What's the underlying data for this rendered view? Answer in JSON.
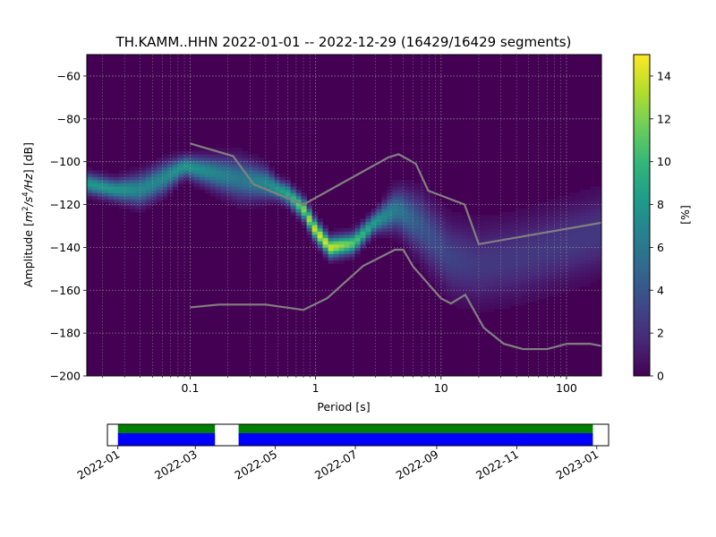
{
  "chart_data": [
    {
      "type": "heatmap",
      "title": "TH.KAMM..HHN   2022-01-01 -- 2022-12-29  (16429/16429 segments)",
      "xlabel": "Period [s]",
      "ylabel_main": "Amplitude [",
      "ylabel_m": "m",
      "ylabel_exp2": "2",
      "ylabel_slash_s": "/s",
      "ylabel_exp4": "4",
      "ylabel_hz": "/Hz",
      "ylabel_end": "] [dB]",
      "x_scale": "log",
      "xlim": [
        0.015,
        190
      ],
      "ylim": [
        -200,
        -50
      ],
      "x_ticks": [
        {
          "value": 0.1,
          "label": "0.1"
        },
        {
          "value": 1,
          "label": "1"
        },
        {
          "value": 10,
          "label": "10"
        },
        {
          "value": 100,
          "label": "100"
        }
      ],
      "y_ticks": [
        {
          "value": -60,
          "label": "−60"
        },
        {
          "value": -80,
          "label": "−80"
        },
        {
          "value": -100,
          "label": "−100"
        },
        {
          "value": -120,
          "label": "−120"
        },
        {
          "value": -140,
          "label": "−140"
        },
        {
          "value": -160,
          "label": "−160"
        },
        {
          "value": -180,
          "label": "−180"
        },
        {
          "value": -200,
          "label": "−200"
        }
      ],
      "grid": true,
      "colormap": "viridis",
      "colorbar": {
        "label": "[%]",
        "range": [
          0,
          15
        ],
        "ticks": [
          {
            "value": 0,
            "label": "0"
          },
          {
            "value": 2,
            "label": "2"
          },
          {
            "value": 4,
            "label": "4"
          },
          {
            "value": 6,
            "label": "6"
          },
          {
            "value": 8,
            "label": "8"
          },
          {
            "value": 10,
            "label": "10"
          },
          {
            "value": 12,
            "label": "12"
          },
          {
            "value": 14,
            "label": "14"
          }
        ]
      },
      "density_ridge": [
        {
          "period": 0.015,
          "db": -110,
          "peak_pct": 8
        },
        {
          "period": 0.025,
          "db": -113,
          "peak_pct": 8
        },
        {
          "period": 0.04,
          "db": -113,
          "peak_pct": 7
        },
        {
          "period": 0.06,
          "db": -108,
          "peak_pct": 7
        },
        {
          "period": 0.09,
          "db": -102,
          "peak_pct": 8
        },
        {
          "period": 0.15,
          "db": -105,
          "peak_pct": 7
        },
        {
          "period": 0.25,
          "db": -108,
          "peak_pct": 6
        },
        {
          "period": 0.4,
          "db": -110,
          "peak_pct": 7
        },
        {
          "period": 0.6,
          "db": -115,
          "peak_pct": 9
        },
        {
          "period": 0.8,
          "db": -122,
          "peak_pct": 12
        },
        {
          "period": 1.0,
          "db": -132,
          "peak_pct": 14
        },
        {
          "period": 1.3,
          "db": -140,
          "peak_pct": 14
        },
        {
          "period": 2.0,
          "db": -138,
          "peak_pct": 11
        },
        {
          "period": 3.0,
          "db": -128,
          "peak_pct": 8
        },
        {
          "period": 4.5,
          "db": -122,
          "peak_pct": 6
        },
        {
          "period": 7,
          "db": -130,
          "peak_pct": 4
        },
        {
          "period": 12,
          "db": -145,
          "peak_pct": 3
        },
        {
          "period": 20,
          "db": -148,
          "peak_pct": 2.5
        },
        {
          "period": 40,
          "db": -145,
          "peak_pct": 2.5
        },
        {
          "period": 80,
          "db": -140,
          "peak_pct": 2.5
        },
        {
          "period": 190,
          "db": -133,
          "peak_pct": 2.5
        }
      ],
      "noise_models": [
        {
          "name": "",
          "points": [
            [
              0.1,
              -91.5
            ],
            [
              0.22,
              -97.4
            ],
            [
              0.32,
              -110.5
            ],
            [
              0.8,
              -120
            ],
            [
              3.8,
              -98
            ],
            [
              4.6,
              -96.5
            ],
            [
              6.3,
              -101
            ],
            [
              7.9,
              -113.5
            ],
            [
              15.4,
              -120
            ],
            [
              20,
              -138.5
            ],
            [
              190,
              -128.5
            ]
          ]
        },
        {
          "name": "",
          "points": [
            [
              0.1,
              -168
            ],
            [
              0.17,
              -166.7
            ],
            [
              0.4,
              -166.7
            ],
            [
              0.8,
              -169.2
            ],
            [
              1.24,
              -163.7
            ],
            [
              2.4,
              -148.6
            ],
            [
              4.3,
              -141.1
            ],
            [
              5.0,
              -141.1
            ],
            [
              6.0,
              -149
            ],
            [
              10,
              -163.8
            ],
            [
              12,
              -166.2
            ],
            [
              15.6,
              -162.1
            ],
            [
              21.9,
              -177.5
            ],
            [
              31.6,
              -185
            ],
            [
              45,
              -187.5
            ],
            [
              70,
              -187.5
            ],
            [
              101,
              -185
            ],
            [
              154,
              -185
            ],
            [
              190,
              -186
            ]
          ]
        }
      ]
    },
    {
      "type": "timeline",
      "xlim": [
        "2021-12-24",
        "2023-01-10"
      ],
      "x_ticks": [
        {
          "date": "2022-01-01",
          "label": "2022-01"
        },
        {
          "date": "2022-03-01",
          "label": "2022-03"
        },
        {
          "date": "2022-05-01",
          "label": "2022-05"
        },
        {
          "date": "2022-07-01",
          "label": "2022-07"
        },
        {
          "date": "2022-09-01",
          "label": "2022-09"
        },
        {
          "date": "2022-11-01",
          "label": "2022-11"
        },
        {
          "date": "2023-01-01",
          "label": "2023-01"
        }
      ],
      "data_ranges": [
        {
          "start": "2022-01-01",
          "end": "2022-03-16"
        },
        {
          "start": "2022-04-03",
          "end": "2022-12-29"
        }
      ],
      "colors": {
        "top_band": "#008000",
        "bottom_band": "#0000ff"
      }
    }
  ],
  "colors": {
    "noise_model_line": "#808080",
    "grid": "#b0b0b0"
  }
}
